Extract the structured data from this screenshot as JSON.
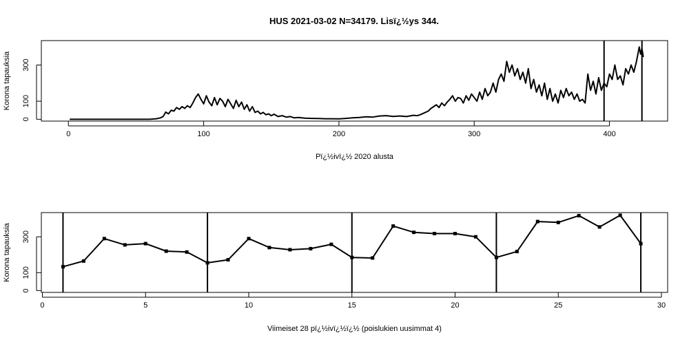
{
  "chart_data": [
    {
      "type": "line",
      "title": "HUS 2021-03-02 N=34179. Lisï¿½ys 344.",
      "xlabel": "Pï¿½ivï¿½ 2020 alusta",
      "ylabel": "Korona tapauksia",
      "xlim": [
        -20,
        443
      ],
      "ylim": [
        -10,
        435
      ],
      "xticks": [
        0,
        100,
        200,
        300,
        400
      ],
      "yticks": [
        0,
        100,
        300
      ],
      "vlines": [
        396,
        424
      ],
      "grid": false,
      "legend": "none",
      "series": [
        {
          "x": [
            1,
            20,
            40,
            60,
            65,
            68,
            70,
            72,
            74,
            76,
            78,
            80,
            82,
            84,
            86,
            88,
            90,
            92,
            94,
            96,
            98,
            100,
            102,
            104,
            106,
            108,
            110,
            112,
            114,
            116,
            118,
            120,
            122,
            124,
            126,
            128,
            130,
            132,
            134,
            136,
            138,
            140,
            142,
            144,
            146,
            148,
            150,
            152,
            155,
            158,
            161,
            164,
            167,
            170,
            175,
            180,
            185,
            190,
            195,
            200,
            205,
            210,
            215,
            220,
            225,
            230,
            235,
            240,
            245,
            250,
            255,
            258,
            260,
            263,
            266,
            268,
            270,
            272,
            274,
            276,
            278,
            280,
            282,
            284,
            286,
            288,
            290,
            292,
            294,
            296,
            298,
            300,
            302,
            304,
            306,
            308,
            310,
            312,
            314,
            316,
            318,
            320,
            322,
            324,
            326,
            328,
            330,
            332,
            334,
            336,
            338,
            340,
            342,
            344,
            346,
            348,
            350,
            352,
            354,
            356,
            358,
            360,
            362,
            364,
            366,
            368,
            370,
            372,
            374,
            376,
            378,
            380,
            382,
            384,
            386,
            388,
            390,
            392,
            394,
            396,
            398,
            400,
            402,
            404,
            406,
            408,
            410,
            412,
            414,
            416,
            418,
            420,
            422,
            423,
            424,
            425
          ],
          "values": [
            0,
            0,
            0,
            0,
            3,
            8,
            15,
            40,
            30,
            50,
            45,
            65,
            55,
            70,
            60,
            75,
            65,
            90,
            120,
            140,
            110,
            85,
            130,
            95,
            75,
            120,
            80,
            115,
            100,
            70,
            110,
            85,
            60,
            105,
            70,
            95,
            55,
            80,
            45,
            70,
            38,
            45,
            30,
            38,
            25,
            30,
            20,
            28,
            15,
            20,
            12,
            15,
            8,
            10,
            6,
            5,
            4,
            3,
            3,
            2,
            5,
            8,
            10,
            14,
            12,
            18,
            20,
            16,
            18,
            15,
            22,
            20,
            25,
            35,
            45,
            60,
            70,
            80,
            65,
            90,
            75,
            95,
            110,
            130,
            100,
            120,
            115,
            90,
            130,
            105,
            140,
            120,
            100,
            150,
            110,
            170,
            130,
            150,
            200,
            150,
            220,
            250,
            210,
            320,
            260,
            300,
            240,
            280,
            220,
            260,
            200,
            280,
            170,
            220,
            150,
            190,
            130,
            200,
            110,
            170,
            100,
            140,
            90,
            160,
            120,
            170,
            130,
            150,
            110,
            140,
            100,
            110,
            90,
            250,
            160,
            210,
            140,
            230,
            160,
            200,
            180,
            250,
            220,
            300,
            220,
            240,
            190,
            280,
            250,
            300,
            260,
            320,
            400,
            360,
            390,
            344
          ]
        }
      ]
    },
    {
      "type": "line",
      "title": "",
      "xlabel": "Viimeiset 28 pï¿½ivï¿½ï¿½ (poislukien uusimmat 4)",
      "ylabel": "Korona tapauksia",
      "xlim": [
        -0.05,
        30.3
      ],
      "ylim": [
        -10,
        435
      ],
      "xticks": [
        0,
        5,
        10,
        15,
        20,
        25,
        30
      ],
      "yticks": [
        0,
        100,
        300
      ],
      "vlines": [
        1,
        8,
        15,
        22,
        29
      ],
      "grid": false,
      "legend": "none",
      "series": [
        {
          "x": [
            1,
            2,
            3,
            4,
            5,
            6,
            7,
            8,
            9,
            10,
            11,
            12,
            13,
            14,
            15,
            16,
            17,
            18,
            19,
            20,
            21,
            22,
            23,
            24,
            25,
            26,
            27,
            28,
            29
          ],
          "values": [
            133,
            165,
            290,
            255,
            262,
            220,
            215,
            155,
            172,
            290,
            240,
            228,
            234,
            258,
            185,
            182,
            360,
            325,
            318,
            318,
            300,
            185,
            218,
            385,
            380,
            418,
            355,
            420,
            262
          ]
        }
      ]
    }
  ]
}
